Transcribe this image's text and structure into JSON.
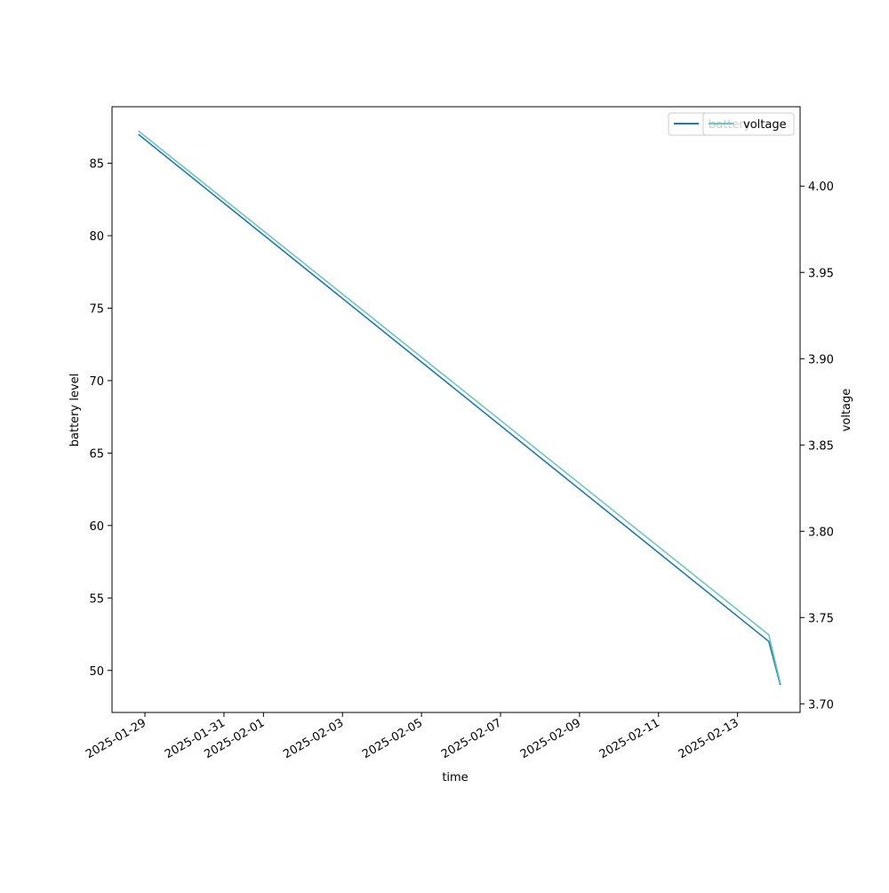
{
  "chart_data": {
    "type": "line",
    "xlabel": "time",
    "ylabel": "battery level",
    "ylabel_right": "voltage",
    "x_ticks": [
      "2025-01-29",
      "2025-01-31",
      "2025-02-01",
      "2025-02-03",
      "2025-02-05",
      "2025-02-07",
      "2025-02-09",
      "2025-02-11",
      "2025-02-13"
    ],
    "y_ticks": [
      50,
      55,
      60,
      65,
      70,
      75,
      80,
      85
    ],
    "y_right_ticks": [
      "3.70",
      "3.75",
      "3.80",
      "3.85",
      "3.90",
      "3.95",
      "4.00"
    ],
    "ylim": [
      47.1,
      88.9
    ],
    "ylim_right": [
      3.695,
      4.046
    ],
    "x_range": [
      "2025-01-28T04:00",
      "2025-02-14T14:00"
    ],
    "legend_position": "top-right",
    "series": [
      {
        "name": "battery",
        "axis": "left",
        "color": "#1f77b4",
        "x": [
          "2025-01-28T20:00",
          "2025-02-13T19:00",
          "2025-02-14T02:00"
        ],
        "values": [
          87,
          52,
          49
        ]
      },
      {
        "name": "voltage",
        "axis": "right",
        "color": "#6cc8b8",
        "x": [
          "2025-01-28T20:00",
          "2025-02-13T19:00",
          "2025-02-14T02:00"
        ],
        "values": [
          4.032,
          3.74,
          3.712
        ]
      }
    ]
  }
}
